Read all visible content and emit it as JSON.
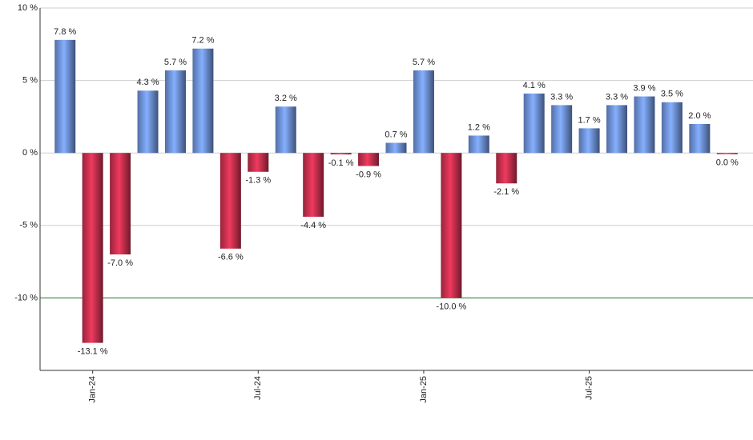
{
  "chart_data": {
    "type": "bar",
    "categories": [
      null,
      "Jan-24",
      null,
      null,
      null,
      null,
      null,
      "Jul-24",
      null,
      null,
      null,
      null,
      null,
      "Jan-25",
      null,
      null,
      null,
      null,
      null,
      "Jul-25",
      null,
      null,
      null,
      null,
      null
    ],
    "values": [
      7.8,
      -13.1,
      -7.0,
      4.3,
      5.7,
      7.2,
      -6.6,
      -1.3,
      3.2,
      -4.4,
      -0.1,
      -0.9,
      0.7,
      5.7,
      -10.0,
      1.2,
      -2.1,
      4.1,
      3.3,
      1.7,
      3.3,
      3.9,
      3.5,
      2.0,
      0.0
    ],
    "value_labels": [
      "7.8 %",
      "-13.1 %",
      "-7.0 %",
      "4.3 %",
      "5.7 %",
      "7.2 %",
      "-6.6 %",
      "-1.3 %",
      "3.2 %",
      "-4.4 %",
      "-0.1 %",
      "-0.9 %",
      "0.7 %",
      "5.7 %",
      "-10.0 %",
      "1.2 %",
      "-2.1 %",
      "4.1 %",
      "3.3 %",
      "1.7 %",
      "3.3 %",
      "3.9 %",
      "3.5 %",
      "2.0 %",
      "0.0 %"
    ],
    "positive_color": "#6f93dc",
    "negative_color": "#c8304e",
    "ylim": [
      -15,
      10
    ],
    "yticks": [
      {
        "value": 10,
        "label": "10 %"
      },
      {
        "value": 5,
        "label": "5 %"
      },
      {
        "value": 0,
        "label": "0 %"
      },
      {
        "value": -5,
        "label": "-5 %"
      },
      {
        "value": -10,
        "label": "-10 %"
      }
    ],
    "grid": true,
    "reference_line": {
      "value": -10,
      "color": "#2e7d32"
    }
  }
}
